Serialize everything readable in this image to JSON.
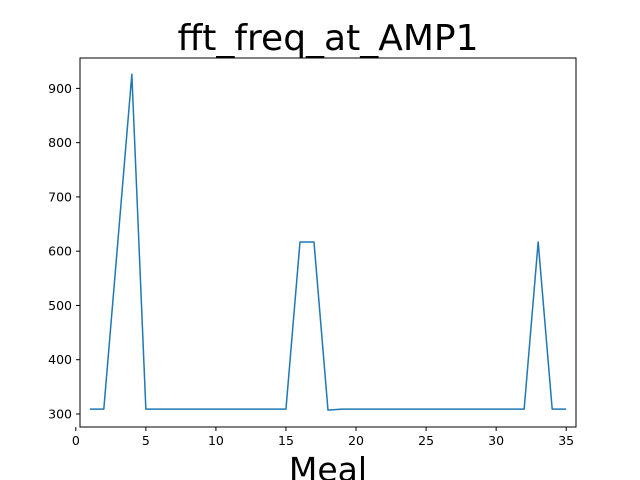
{
  "chart_data": {
    "type": "line",
    "title": "fft_freq_at_AMP1",
    "xlabel": "Meal",
    "ylabel": "",
    "xlim": [
      0.3,
      35.7
    ],
    "ylim": [
      276,
      956
    ],
    "xticks": [
      0,
      5,
      10,
      15,
      20,
      25,
      30,
      35
    ],
    "yticks": [
      300,
      400,
      500,
      600,
      700,
      800,
      900
    ],
    "grid": false,
    "line_color": "#1f77b4",
    "series": [
      {
        "x": [
          1,
          2,
          3,
          4,
          5,
          6,
          7,
          8,
          9,
          10,
          11,
          12,
          13,
          14,
          15,
          16,
          17,
          18,
          19,
          20,
          21,
          22,
          23,
          24,
          25,
          26,
          27,
          28,
          29,
          30,
          31,
          32,
          33,
          34,
          35
        ],
        "values": [
          309,
          309,
          617,
          926,
          309,
          309,
          309,
          309,
          309,
          309,
          309,
          309,
          309,
          309,
          309,
          617,
          617,
          307,
          309,
          309,
          309,
          309,
          309,
          309,
          309,
          309,
          309,
          309,
          309,
          309,
          309,
          309,
          617,
          309,
          309
        ]
      }
    ]
  }
}
